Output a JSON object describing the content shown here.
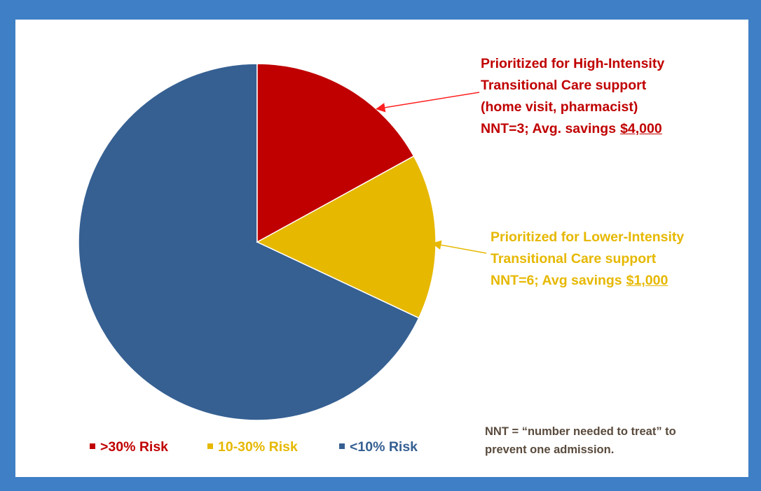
{
  "chart_data": {
    "type": "pie",
    "categories": [
      ">30% Risk",
      "10-30% Risk",
      "<10% Risk"
    ],
    "values": [
      17,
      15,
      68
    ],
    "colors": [
      "#c00000",
      "#e6b800",
      "#366092"
    ],
    "legend": "bottom",
    "annotations": [
      {
        "color": "#c00000",
        "lines": [
          [
            "Prioritized for High-Intensity"
          ],
          [
            "Transitional Care support"
          ],
          [
            "(home visit, pharmacist)"
          ],
          [
            "NNT=3; Avg. savings",
            "$4,000"
          ]
        ]
      },
      {
        "color": "#e6b800",
        "lines": [
          [
            "Prioritized for Lower-Intensity"
          ],
          [
            "Transitional Care support"
          ],
          [
            "NNT=6; Avg savings",
            "$1,000"
          ]
        ]
      }
    ],
    "footnote": [
      "NNT = “number needed to treat” to",
      "prevent one admission."
    ]
  }
}
